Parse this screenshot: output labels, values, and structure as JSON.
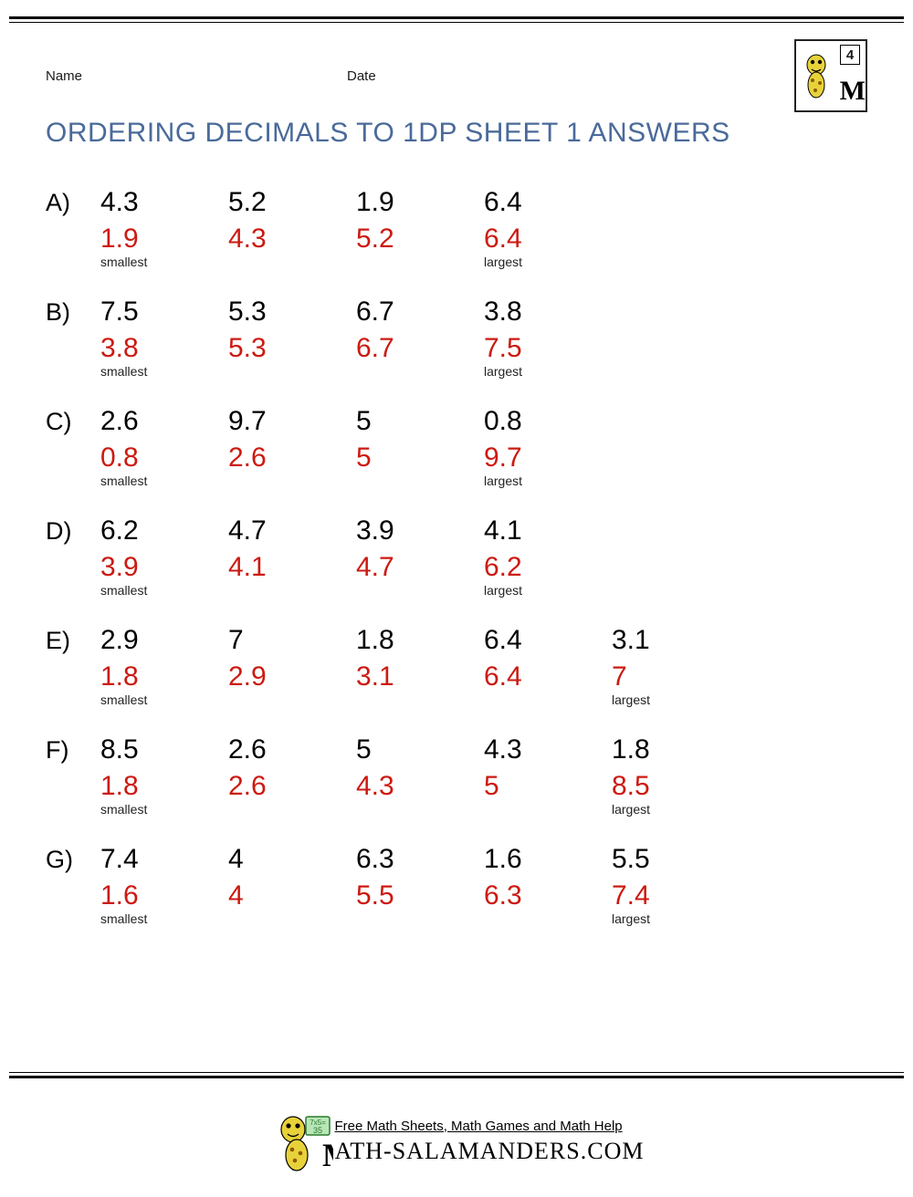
{
  "header": {
    "name_label": "Name",
    "date_label": "Date",
    "grade": "4"
  },
  "title": "ORDERING DECIMALS TO 1DP SHEET 1 ANSWERS",
  "hints": {
    "smallest": "smallest",
    "largest": "largest"
  },
  "colors": {
    "title": "#4a6a9a",
    "given": "#000000",
    "answer": "#cc1a11",
    "hint": "#222222"
  },
  "problems": [
    {
      "letter": "A)",
      "given": [
        "4.3",
        "5.2",
        "1.9",
        "6.4"
      ],
      "answer": [
        "1.9",
        "4.3",
        "5.2",
        "6.4"
      ]
    },
    {
      "letter": "B)",
      "given": [
        "7.5",
        "5.3",
        "6.7",
        "3.8"
      ],
      "answer": [
        "3.8",
        "5.3",
        "6.7",
        "7.5"
      ]
    },
    {
      "letter": "C)",
      "given": [
        "2.6",
        "9.7",
        "5",
        "0.8"
      ],
      "answer": [
        "0.8",
        "2.6",
        "5",
        "9.7"
      ]
    },
    {
      "letter": "D)",
      "given": [
        "6.2",
        "4.7",
        "3.9",
        "4.1"
      ],
      "answer": [
        "3.9",
        "4.1",
        "4.7",
        "6.2"
      ]
    },
    {
      "letter": "E)",
      "given": [
        "2.9",
        "7",
        "1.8",
        "6.4",
        "3.1"
      ],
      "answer": [
        "1.8",
        "2.9",
        "3.1",
        "6.4",
        "7"
      ]
    },
    {
      "letter": "F)",
      "given": [
        "8.5",
        "2.6",
        "5",
        "4.3",
        "1.8"
      ],
      "answer": [
        "1.8",
        "2.6",
        "4.3",
        "5",
        "8.5"
      ]
    },
    {
      "letter": "G)",
      "given": [
        "7.4",
        "4",
        "6.3",
        "1.6",
        "5.5"
      ],
      "answer": [
        "1.6",
        "4",
        "5.5",
        "6.3",
        "7.4"
      ]
    }
  ],
  "footer": {
    "tagline": "Free Math Sheets, Math Games and Math Help",
    "domain": "ATH-SALAMANDERS.COM"
  }
}
